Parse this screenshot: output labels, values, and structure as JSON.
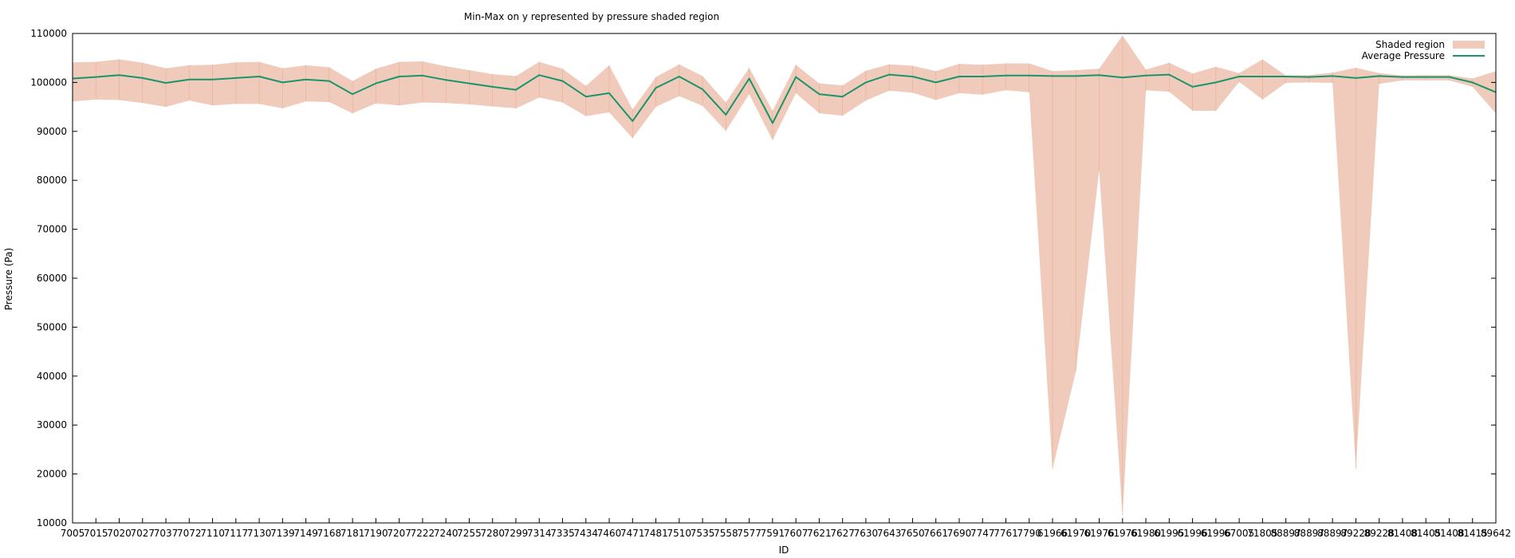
{
  "chart_data": {
    "type": "area",
    "title": "Min-Max on y represented by pressure shaded region",
    "xlabel": "ID",
    "ylabel": "Pressure (Pa)",
    "ylim": [
      10000,
      110000
    ],
    "yticks": [
      10000,
      20000,
      30000,
      40000,
      50000,
      60000,
      70000,
      80000,
      90000,
      100000,
      110000
    ],
    "grid": false,
    "legend_position": "top-right",
    "categories": [
      "7005",
      "7015",
      "7020",
      "7027",
      "7037",
      "7072",
      "7110",
      "7117",
      "7130",
      "7139",
      "7149",
      "7168",
      "7181",
      "7190",
      "7207",
      "7222",
      "7240",
      "7255",
      "7280",
      "7299",
      "7314",
      "7335",
      "7434",
      "7460",
      "7471",
      "7481",
      "7510",
      "7535",
      "7558",
      "7577",
      "7591",
      "7607",
      "7621",
      "7627",
      "7630",
      "7643",
      "7650",
      "7661",
      "7690",
      "7747",
      "7761",
      "7790",
      "61966",
      "61970",
      "61976",
      "61976",
      "61980",
      "61995",
      "61996",
      "61996",
      "67005",
      "71805",
      "88897",
      "88897",
      "88897",
      "89228",
      "89228",
      "81408",
      "81405",
      "81408",
      "81415",
      "89642"
    ],
    "series": [
      {
        "name": "Average Pressure",
        "color": "#1a9468",
        "values": [
          100800,
          101100,
          101500,
          100900,
          99900,
          100600,
          100600,
          100900,
          101200,
          100000,
          100600,
          100300,
          97600,
          99800,
          101200,
          101400,
          100500,
          99800,
          99100,
          98500,
          101500,
          100300,
          97100,
          97800,
          92100,
          98900,
          101200,
          98600,
          93400,
          100800,
          91700,
          101100,
          97600,
          97100,
          100000,
          101600,
          101200,
          100000,
          101200,
          101200,
          101400,
          101400,
          101300,
          101300,
          101500,
          101000,
          101400,
          101600,
          99100,
          100000,
          101200,
          101200,
          101200,
          101100,
          101300,
          100900,
          101300,
          101100,
          101100,
          101100,
          100000,
          98000
        ]
      },
      {
        "name": "Shaded region",
        "color": "#f0cbbb",
        "min": [
          96100,
          96500,
          96400,
          95800,
          95000,
          96300,
          95300,
          95600,
          95600,
          94700,
          96100,
          96000,
          93700,
          95700,
          95300,
          95900,
          95800,
          95500,
          95100,
          94700,
          96900,
          95900,
          93100,
          93900,
          88600,
          95000,
          97200,
          95200,
          90100,
          97600,
          88200,
          97800,
          93700,
          93200,
          96300,
          98300,
          97900,
          96400,
          97800,
          97500,
          98400,
          98000,
          21000,
          41000,
          82000,
          11500,
          98400,
          98100,
          94200,
          94200,
          100100,
          96500,
          99900,
          100000,
          99900,
          21100,
          99700,
          100400,
          100400,
          100400,
          99100,
          93700
        ],
        "max": [
          104100,
          104200,
          104700,
          104000,
          102900,
          103500,
          103600,
          104100,
          104200,
          102900,
          103500,
          103100,
          100300,
          102800,
          104200,
          104300,
          103300,
          102500,
          101700,
          101300,
          104200,
          102800,
          99300,
          103500,
          94500,
          101100,
          103700,
          101300,
          95900,
          103000,
          94200,
          103600,
          99800,
          99400,
          102400,
          103700,
          103400,
          102300,
          103800,
          103600,
          103900,
          103900,
          102300,
          102500,
          102800,
          109600,
          102600,
          104000,
          101800,
          103200,
          101900,
          104700,
          101400,
          101500,
          102000,
          103000,
          101900,
          101400,
          101500,
          101500,
          100800,
          102300
        ]
      }
    ]
  }
}
